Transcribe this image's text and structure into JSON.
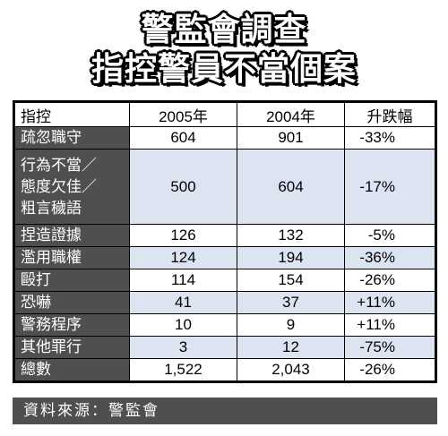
{
  "title": {
    "line1": "警監會調查",
    "line2": "指控警員不當個案"
  },
  "table": {
    "headers": [
      "指控",
      "2005年",
      "2004年",
      "升跌幅"
    ],
    "rows": [
      {
        "category": "疏忽職守",
        "y2005": "604",
        "y2004": "901",
        "change": "-33%"
      },
      {
        "category": "行為不當／\n態度欠佳／\n粗言穢語",
        "y2005": "500",
        "y2004": "604",
        "change": "-17%"
      },
      {
        "category": "捏造證據",
        "y2005": "126",
        "y2004": "132",
        "change": "-5%"
      },
      {
        "category": "濫用職權",
        "y2005": "124",
        "y2004": "194",
        "change": "-36%"
      },
      {
        "category": "毆打",
        "y2005": "114",
        "y2004": "154",
        "change": "-26%"
      },
      {
        "category": "恐嚇",
        "y2005": "41",
        "y2004": "37",
        "change": "+11%"
      },
      {
        "category": "警務程序",
        "y2005": "10",
        "y2004": "9",
        "change": "+11%"
      },
      {
        "category": "其他罪行",
        "y2005": "3",
        "y2004": "12",
        "change": "-75%"
      },
      {
        "category": "總數",
        "y2005": "1,522",
        "y2004": "2,043",
        "change": "-26%"
      }
    ]
  },
  "source": "資料來源：警監會",
  "colors": {
    "category_bg": "#4f4f4f",
    "row_alt_bg": "#dce3f1"
  }
}
